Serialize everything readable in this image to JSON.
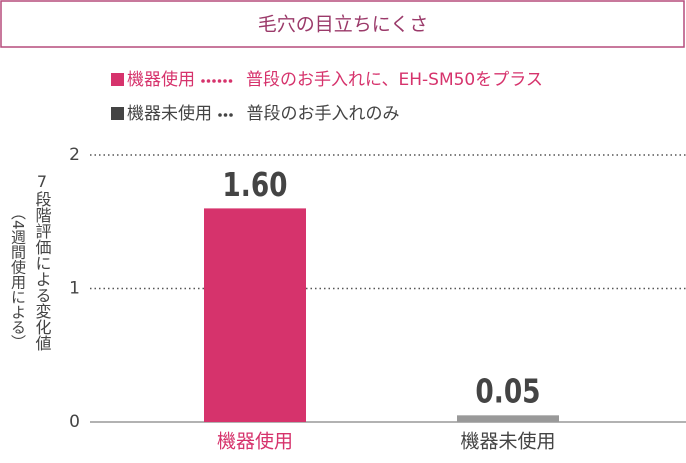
{
  "chart_data": {
    "type": "bar",
    "title": "毛穴の目立ちにくさ",
    "y_label": "7段階評価による変化値",
    "y_label_note": "（4週間使用による）",
    "legend": [
      {
        "label": "機器使用",
        "description": "普段のお手入れに、EH-SM50をプラス",
        "color": "#d6336c",
        "dots": 6
      },
      {
        "label": "機器未使用",
        "description": "普段のお手入れのみ",
        "color": "#444444",
        "dots": 3
      }
    ],
    "categories": [
      "機器使用",
      "機器未使用"
    ],
    "category_colors": [
      "#d6336c",
      "#444444"
    ],
    "values": [
      1.6,
      0.05
    ],
    "value_labels": [
      "1.60",
      "0.05"
    ],
    "colors": [
      "#d6336c",
      "#999999"
    ],
    "ylim": [
      0,
      2
    ],
    "yticks": [
      0,
      1,
      2
    ],
    "grid": true
  }
}
